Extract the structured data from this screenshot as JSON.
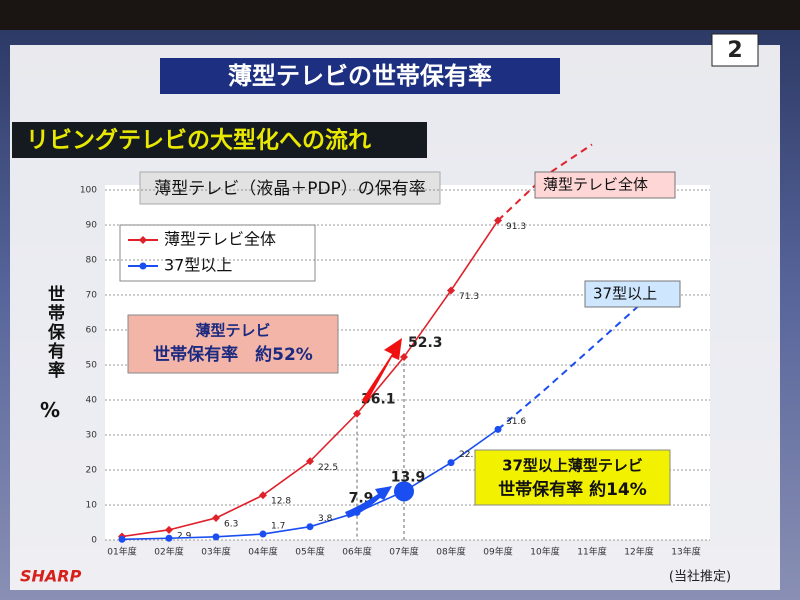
{
  "header": {
    "title": "薄型テレビの世帯保有率",
    "page_number": "2",
    "subtitle": "リビングテレビの大型化への流れ"
  },
  "chart_data": {
    "type": "line",
    "title": "薄型テレビ（液晶＋PDP）の保有率",
    "y_label": "世帯保有率",
    "y_unit": "%",
    "categories": [
      "01年度",
      "02年度",
      "03年度",
      "04年度",
      "05年度",
      "06年度",
      "07年度",
      "08年度",
      "09年度",
      "10年度",
      "11年度",
      "12年度",
      "13年度"
    ],
    "series": [
      {
        "name": "薄型テレビ全体",
        "color": "#e0202a",
        "marker": "diamond",
        "values": [
          1,
          2.9,
          6.3,
          12.8,
          22.5,
          36.1,
          52.3,
          71.3,
          91.3,
          null,
          null,
          null,
          null
        ],
        "value_labels": [
          null,
          "2.9",
          "6.3",
          "12.8",
          "22.5",
          "36.1",
          "52.3",
          "71.3",
          "91.3",
          null,
          null,
          null,
          null
        ],
        "projection": [
          null,
          null,
          null,
          null,
          null,
          null,
          null,
          null,
          91.3,
          104,
          113,
          null,
          null
        ],
        "projection_label": "薄型テレビ全体"
      },
      {
        "name": "37型以上",
        "color": "#1a4ef0",
        "marker": "circle",
        "values": [
          0.2,
          0.5,
          0.9,
          1.7,
          3.8,
          7.9,
          13.9,
          22.1,
          31.6,
          null,
          null,
          null,
          null
        ],
        "value_labels": [
          null,
          null,
          null,
          "1.7",
          "3.8",
          "7.9",
          "13.9",
          "22.1",
          "31.6",
          null,
          null,
          null,
          null
        ],
        "projection": [
          null,
          null,
          null,
          null,
          null,
          null,
          null,
          null,
          31.6,
          43,
          55,
          67,
          null
        ],
        "projection_label": "37型以上"
      }
    ],
    "ylim": [
      0,
      100
    ],
    "yticks": [
      0,
      10,
      20,
      30,
      40,
      50,
      60,
      70,
      80,
      90,
      100
    ],
    "grid": true,
    "annotations": [
      {
        "lines": [
          "薄型テレビ",
          "世帯保有率　約52%"
        ]
      },
      {
        "lines": [
          "37型以上薄型テレビ",
          "世帯保有率 約14%"
        ]
      }
    ]
  },
  "footer": {
    "logo": "SHARP",
    "note": "(当社推定)"
  }
}
